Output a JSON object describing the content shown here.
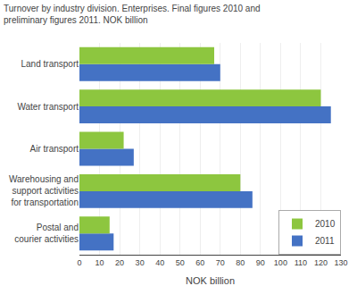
{
  "chart_data": {
    "type": "bar",
    "orientation": "horizontal",
    "title": "Turnover by industry division. Enterprises. Final figures 2010 and\npreliminary figures 2011. NOK billion",
    "categories": [
      "Postal and\ncourier activities",
      "Warehousing and\nsupport activities\nfor transportation",
      "Air transport",
      "Water transport",
      "Land transport"
    ],
    "series": [
      {
        "name": "2010",
        "color": "#8DC63F",
        "values": [
          15,
          80,
          22,
          120,
          67
        ]
      },
      {
        "name": "2011",
        "color": "#4472C4",
        "values": [
          17,
          86,
          27,
          125,
          70
        ]
      }
    ],
    "xlabel": "NOK billion",
    "xlim": [
      0,
      130
    ],
    "xticks": [
      0,
      10,
      20,
      30,
      40,
      50,
      60,
      70,
      80,
      90,
      100,
      110,
      120,
      130
    ],
    "grid": true,
    "legend": "lower right"
  }
}
